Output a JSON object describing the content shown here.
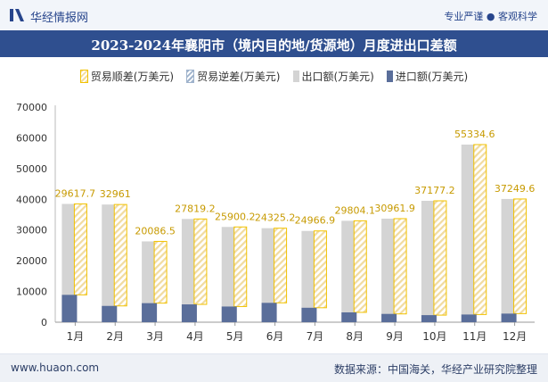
{
  "header": {
    "brand": "华经情报网",
    "slogan": "专业严谨 ● 客观科学",
    "title": "2023-2024年襄阳市（境内目的地/货源地）月度进出口差额"
  },
  "footer": {
    "url": "www.huaon.com",
    "source": "数据来源：中国海关，华经产业研究院整理"
  },
  "colors": {
    "export": "#d4d4d4",
    "import": "#5a6e9a",
    "surplus_border": "#f2c200",
    "brand": "#2f4f8f"
  },
  "chart_data": {
    "type": "bar",
    "categories": [
      "1月",
      "2月",
      "3月",
      "4月",
      "5月",
      "6月",
      "7月",
      "8月",
      "9月",
      "10月",
      "11月",
      "12月"
    ],
    "ylim": [
      0,
      70000
    ],
    "yticks": [
      0,
      10000,
      20000,
      30000,
      40000,
      50000,
      60000,
      70000
    ],
    "legend_position": "top",
    "grid": false,
    "series": [
      {
        "name": "贸易顺差(万美元)",
        "values": [
          29617.7,
          32961,
          20086.5,
          27819.2,
          25900.2,
          24325.2,
          24966.9,
          29804.1,
          30961.9,
          37177.2,
          55334.6,
          37249.6
        ]
      },
      {
        "name": "贸易逆差(万美元)",
        "values": [
          null,
          null,
          null,
          null,
          null,
          null,
          null,
          null,
          null,
          null,
          null,
          null
        ]
      },
      {
        "name": "出口额(万美元)",
        "values": [
          38500,
          38300,
          26300,
          33600,
          31000,
          30600,
          29700,
          33000,
          33700,
          39500,
          57800,
          40100
        ]
      },
      {
        "name": "进口额(万美元)",
        "values": [
          8900,
          5300,
          6200,
          5800,
          5100,
          6300,
          4700,
          3200,
          2700,
          2300,
          2500,
          2800
        ]
      }
    ],
    "labels": [
      "29617.7",
      "32961",
      "20086.5",
      "27819.2",
      "25900.2",
      "24325.2",
      "24966.9",
      "29804.1",
      "30961.9",
      "37177.2",
      "55334.6",
      "37249.6"
    ]
  }
}
